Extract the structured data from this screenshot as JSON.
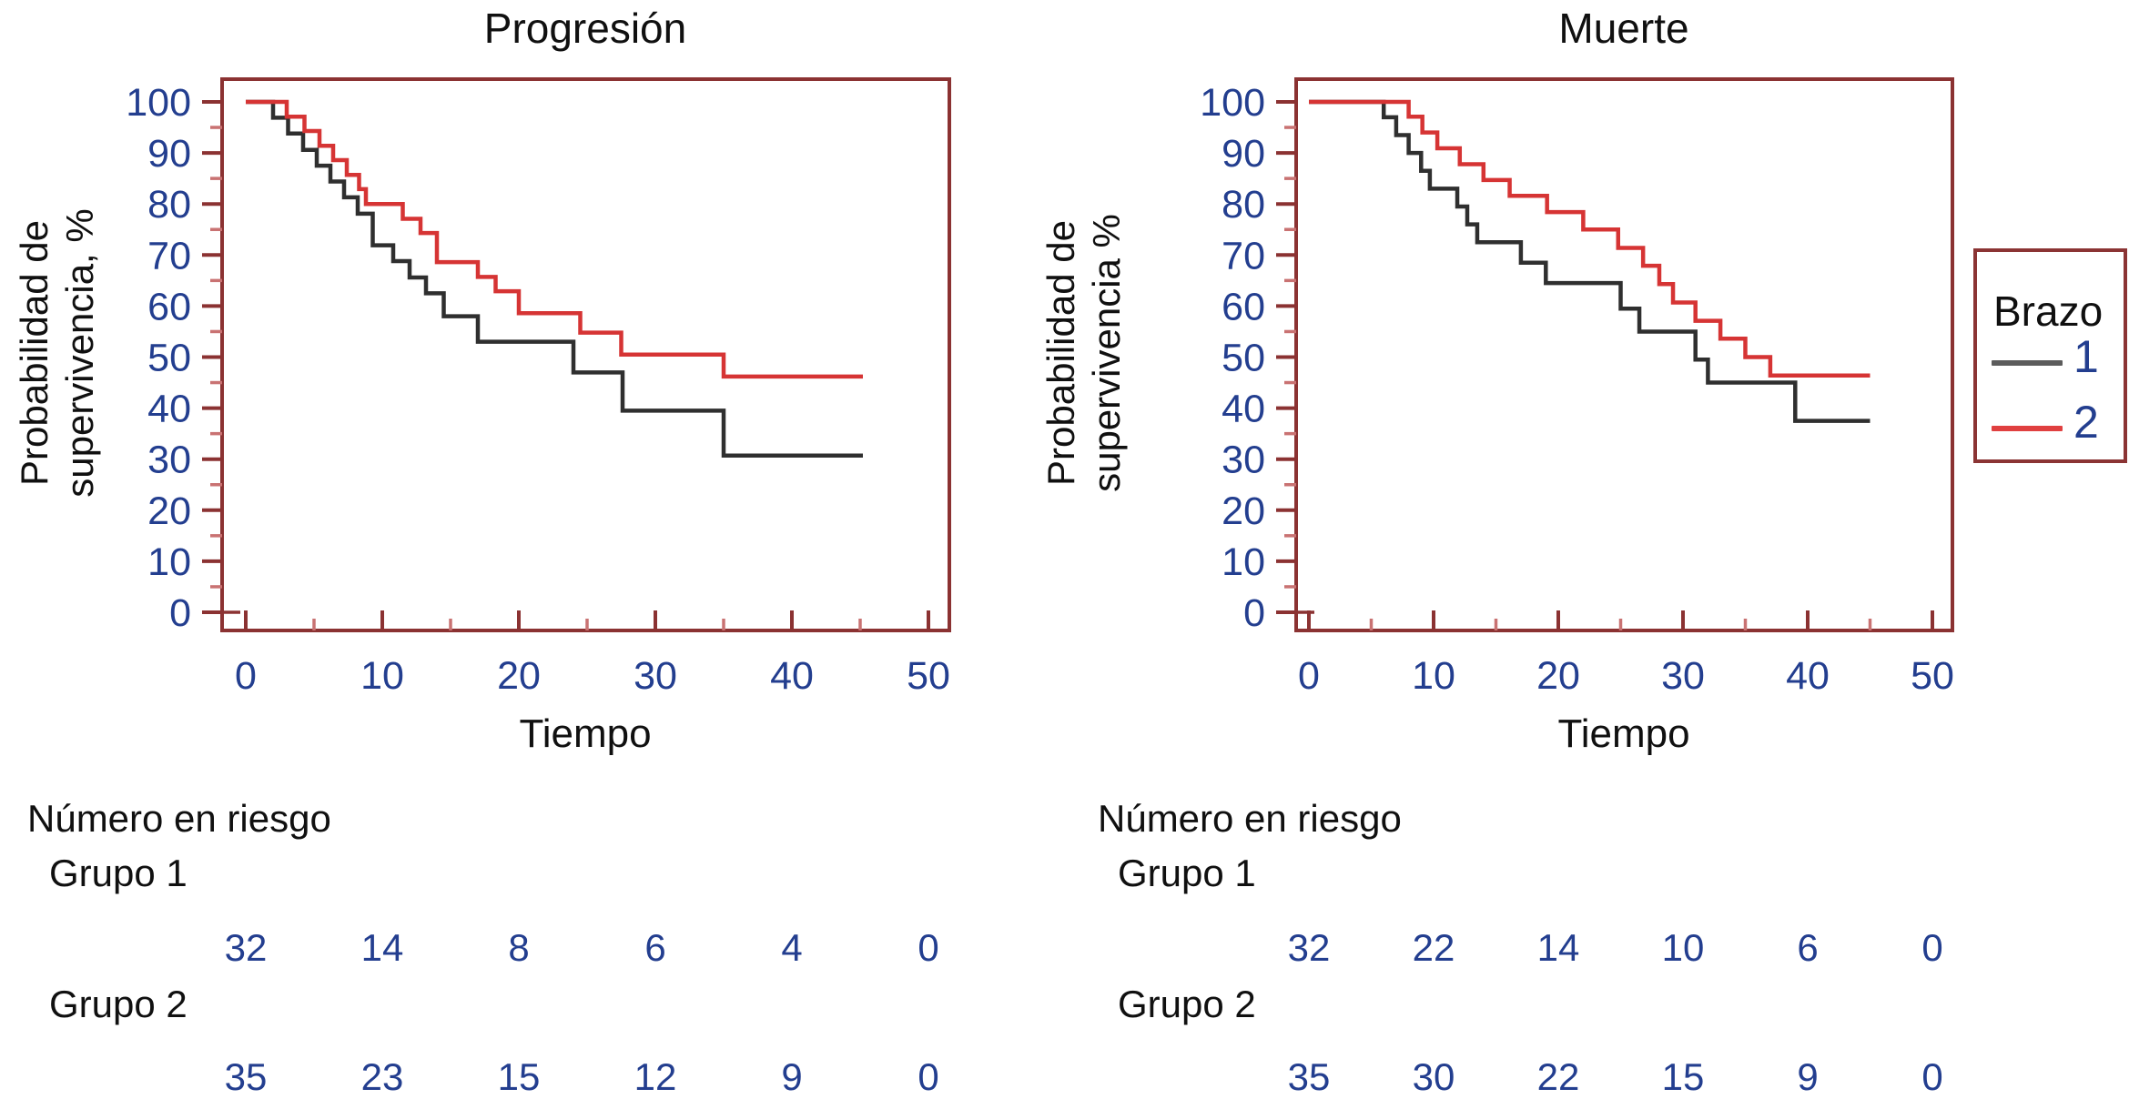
{
  "colors": {
    "axis": "#8B3232",
    "tick_major": "#8B3232",
    "tick_minor": "#C97272",
    "tick_text": "#233E8F",
    "black_curve": "#2F2F2F",
    "red_curve": "#D63434",
    "title_text": "#101010",
    "background": "#FFFFFF"
  },
  "legend": {
    "title": "Brazo",
    "entries": [
      {
        "label": "1",
        "color": "#5C5C5C"
      },
      {
        "label": "2",
        "color": "#E04040"
      }
    ]
  },
  "chart_data": [
    {
      "type": "line",
      "subtype": "km-step",
      "title": "Progresión",
      "xlabel": "Tiempo",
      "ylabel": "Probabilidad de supervivencia, %",
      "ylabel_lines": [
        "Probabilidad de",
        "supervivencia, %"
      ],
      "xlim": [
        0,
        50
      ],
      "ylim": [
        0,
        100
      ],
      "xticks": [
        0,
        10,
        20,
        30,
        40,
        50
      ],
      "xticks_minor": [
        5,
        15,
        25,
        35,
        45
      ],
      "yticks": [
        0,
        10,
        20,
        30,
        40,
        50,
        60,
        70,
        80,
        90,
        100
      ],
      "yticks_minor": [
        5,
        15,
        25,
        35,
        45,
        55,
        65,
        75,
        85,
        95
      ],
      "grid": false,
      "legend_position": "outside-right",
      "series": [
        {
          "name": "Brazo 1",
          "color": "#2F2F2F",
          "end_t": 45.2,
          "steps": [
            [
              0,
              100
            ],
            [
              2,
              96.9
            ],
            [
              3.1,
              93.8
            ],
            [
              4.2,
              90.6
            ],
            [
              5.2,
              87.5
            ],
            [
              6.2,
              84.4
            ],
            [
              7.2,
              81.3
            ],
            [
              8.2,
              78.1
            ],
            [
              9.3,
              71.9
            ],
            [
              10.8,
              68.8
            ],
            [
              12,
              65.6
            ],
            [
              13.2,
              62.5
            ],
            [
              14.5,
              58.0
            ],
            [
              17,
              53.0
            ],
            [
              24,
              47.0
            ],
            [
              27.6,
              39.5
            ],
            [
              35,
              30.7
            ]
          ]
        },
        {
          "name": "Brazo 2",
          "color": "#D63434",
          "end_t": 45.2,
          "steps": [
            [
              0,
              100
            ],
            [
              3,
              97.1
            ],
            [
              4.3,
              94.3
            ],
            [
              5.4,
              91.4
            ],
            [
              6.4,
              88.6
            ],
            [
              7.4,
              85.7
            ],
            [
              8.3,
              82.9
            ],
            [
              8.8,
              80.0
            ],
            [
              11.5,
              77.1
            ],
            [
              12.8,
              74.3
            ],
            [
              14,
              68.6
            ],
            [
              17,
              65.7
            ],
            [
              18.3,
              62.9
            ],
            [
              20,
              58.6
            ],
            [
              24.5,
              54.8
            ],
            [
              27.5,
              50.5
            ],
            [
              35,
              46.2
            ]
          ]
        }
      ],
      "number_at_risk": {
        "header": "Número en riesgo",
        "times": [
          0,
          10,
          20,
          30,
          40,
          50
        ],
        "groups": [
          {
            "name": "Grupo 1",
            "counts": [
              32,
              14,
              8,
              6,
              4,
              0
            ]
          },
          {
            "name": "Grupo 2",
            "counts": [
              35,
              23,
              15,
              12,
              9,
              0
            ]
          }
        ]
      }
    },
    {
      "type": "line",
      "subtype": "km-step",
      "title": "Muerte",
      "xlabel": "Tiempo",
      "ylabel": "Probabilidad de supervivencia %",
      "ylabel_lines": [
        "Probabilidad de",
        "supervivencia %"
      ],
      "xlim": [
        0,
        50
      ],
      "ylim": [
        0,
        100
      ],
      "xticks": [
        0,
        10,
        20,
        30,
        40,
        50
      ],
      "xticks_minor": [
        5,
        15,
        25,
        35,
        45
      ],
      "yticks": [
        0,
        10,
        20,
        30,
        40,
        50,
        60,
        70,
        80,
        90,
        100
      ],
      "yticks_minor": [
        5,
        15,
        25,
        35,
        45,
        55,
        65,
        75,
        85,
        95
      ],
      "grid": false,
      "legend_position": "outside-right",
      "series": [
        {
          "name": "Brazo 1",
          "color": "#2F2F2F",
          "end_t": 45.0,
          "steps": [
            [
              0,
              100
            ],
            [
              6,
              97.0
            ],
            [
              7,
              93.5
            ],
            [
              8,
              90.0
            ],
            [
              9,
              86.5
            ],
            [
              9.7,
              83.0
            ],
            [
              11.9,
              79.5
            ],
            [
              12.7,
              76.0
            ],
            [
              13.5,
              72.5
            ],
            [
              17,
              68.5
            ],
            [
              19,
              64.5
            ],
            [
              25,
              59.5
            ],
            [
              26.5,
              55.0
            ],
            [
              31,
              49.5
            ],
            [
              32,
              45.0
            ],
            [
              39,
              37.5
            ]
          ]
        },
        {
          "name": "Brazo 2",
          "color": "#D63434",
          "end_t": 45.0,
          "steps": [
            [
              0,
              100
            ],
            [
              8,
              97.1
            ],
            [
              9.1,
              94.0
            ],
            [
              10.3,
              90.9
            ],
            [
              12.1,
              87.8
            ],
            [
              14,
              84.7
            ],
            [
              16.1,
              81.6
            ],
            [
              19.1,
              78.4
            ],
            [
              22,
              75.0
            ],
            [
              24.8,
              71.4
            ],
            [
              26.8,
              67.9
            ],
            [
              28.1,
              64.3
            ],
            [
              29.2,
              60.7
            ],
            [
              31,
              57.1
            ],
            [
              33,
              53.6
            ],
            [
              35,
              50.0
            ],
            [
              37,
              46.4
            ]
          ]
        }
      ],
      "number_at_risk": {
        "header": "Número en riesgo",
        "times": [
          0,
          10,
          20,
          30,
          40,
          50
        ],
        "groups": [
          {
            "name": "Grupo 1",
            "counts": [
              32,
              22,
              14,
              10,
              6,
              0
            ]
          },
          {
            "name": "Grupo 2",
            "counts": [
              35,
              30,
              22,
              15,
              9,
              0
            ]
          }
        ]
      }
    }
  ]
}
